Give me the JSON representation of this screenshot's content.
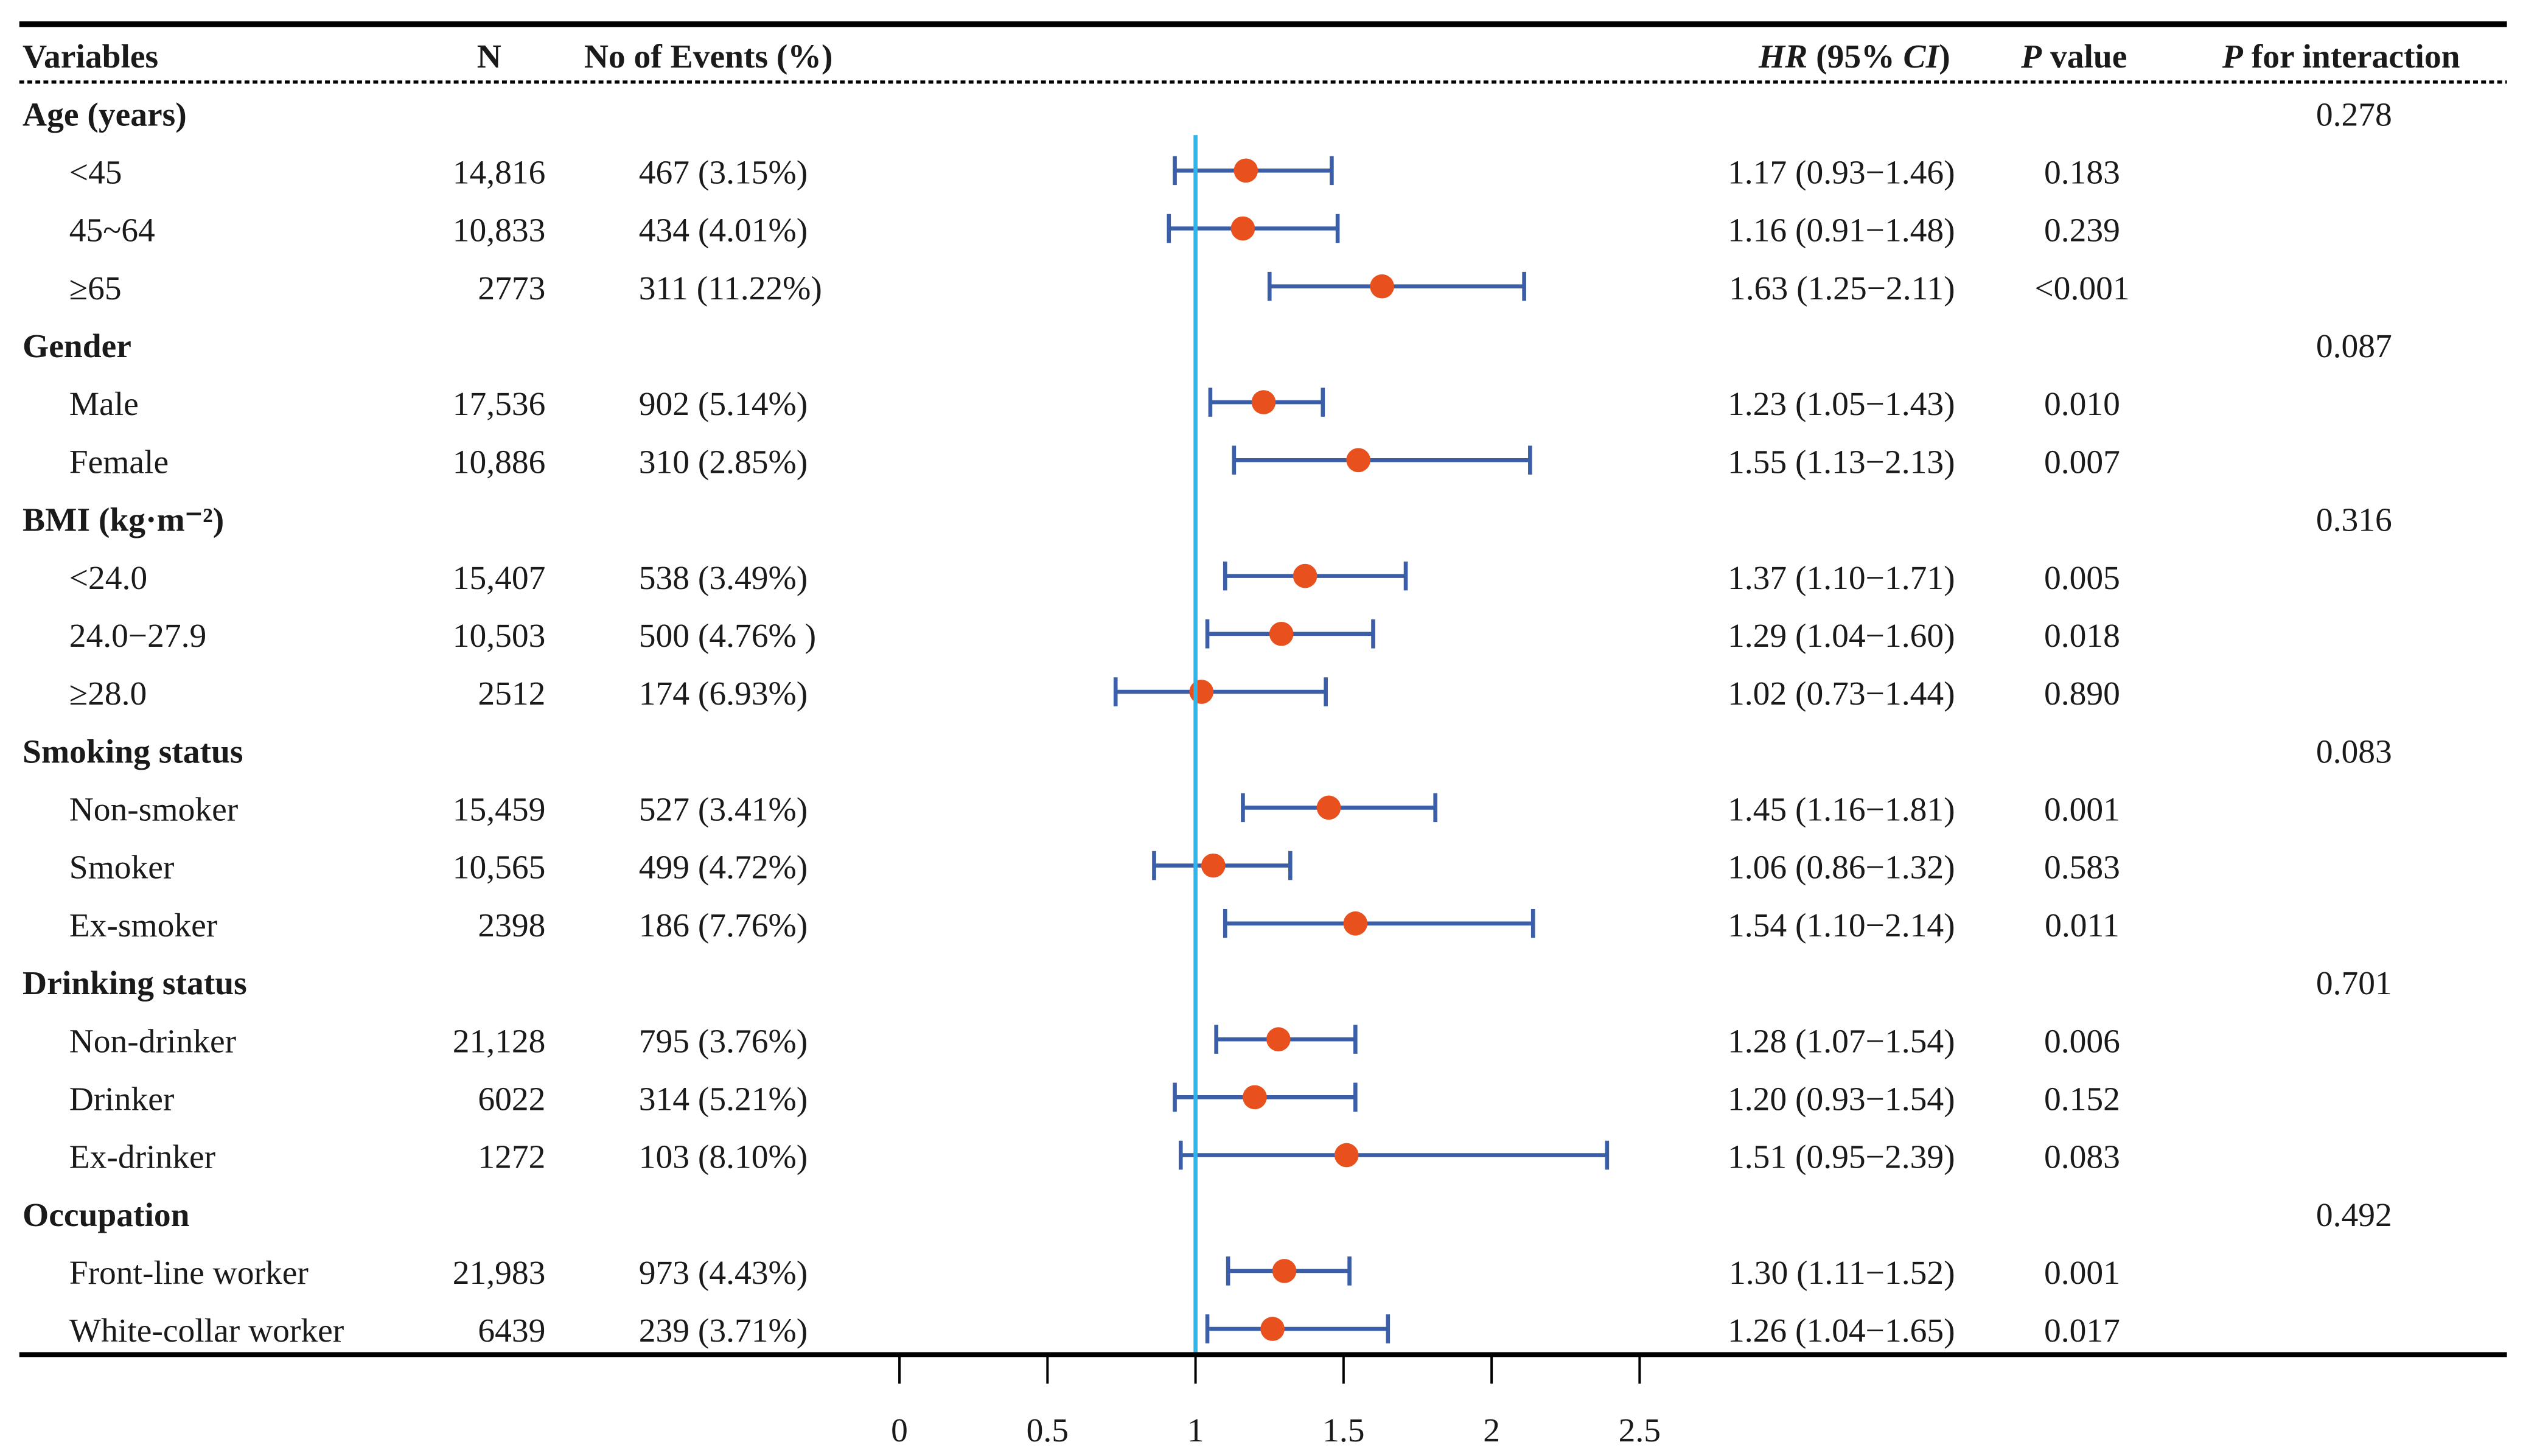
{
  "chart_data": {
    "type": "forest",
    "headers": {
      "variables": "Variables",
      "n": "N",
      "events": "No of Events (%)",
      "hr_i": "HR",
      "hr_mid": " (95% ",
      "hr_ci": "CI",
      "hr_end": ")",
      "p_i": "P",
      "p_rest": " value",
      "pint_i": "P",
      "pint_rest": " for interaction"
    },
    "xaxis": {
      "ticks": [
        "0",
        "0.5",
        "1",
        "1.5",
        "2",
        "2.5"
      ],
      "tick_values": [
        0,
        0.5,
        1,
        1.5,
        2,
        2.5
      ],
      "reference": 1,
      "xlim": [
        0,
        2.5
      ]
    },
    "colors": {
      "point": "#e8501e",
      "ci": "#3a5ea8",
      "reference": "#2bb6ec"
    },
    "groups": [
      {
        "label": "Age (years)",
        "p_interaction": "0.278",
        "rows": [
          {
            "label": "<45",
            "n": "14,816",
            "events": "467 (3.15%)",
            "hr": 1.17,
            "lo": 0.93,
            "hi": 1.46,
            "hr_text": "1.17 (0.93−1.46)",
            "p": "0.183"
          },
          {
            "label": "45~64",
            "n": "10,833",
            "events": "434 (4.01%)",
            "hr": 1.16,
            "lo": 0.91,
            "hi": 1.48,
            "hr_text": "1.16 (0.91−1.48)",
            "p": "0.239"
          },
          {
            "label": "≥65",
            "n": "2773",
            "events": "311 (11.22%)",
            "hr": 1.63,
            "lo": 1.25,
            "hi": 2.11,
            "hr_text": "1.63 (1.25−2.11)",
            "p": "<0.001"
          }
        ]
      },
      {
        "label": "Gender",
        "p_interaction": "0.087",
        "rows": [
          {
            "label": "Male",
            "n": "17,536",
            "events": "902 (5.14%)",
            "hr": 1.23,
            "lo": 1.05,
            "hi": 1.43,
            "hr_text": "1.23 (1.05−1.43)",
            "p": "0.010"
          },
          {
            "label": "Female",
            "n": "10,886",
            "events": "310 (2.85%)",
            "hr": 1.55,
            "lo": 1.13,
            "hi": 2.13,
            "hr_text": "1.55 (1.13−2.13)",
            "p": "0.007"
          }
        ]
      },
      {
        "label": "BMI (kg·m⁻²)",
        "p_interaction": "0.316",
        "rows": [
          {
            "label": "<24.0",
            "n": "15,407",
            "events": "538 (3.49%)",
            "hr": 1.37,
            "lo": 1.1,
            "hi": 1.71,
            "hr_text": "1.37 (1.10−1.71)",
            "p": "0.005"
          },
          {
            "label": "24.0−27.9",
            "n": "10,503",
            "events": "500 (4.76% )",
            "hr": 1.29,
            "lo": 1.04,
            "hi": 1.6,
            "hr_text": "1.29 (1.04−1.60)",
            "p": "0.018"
          },
          {
            "label": "≥28.0",
            "n": "2512",
            "events": "174 (6.93%)",
            "hr": 1.02,
            "lo": 0.73,
            "hi": 1.44,
            "hr_text": "1.02 (0.73−1.44)",
            "p": "0.890"
          }
        ]
      },
      {
        "label": "Smoking status",
        "p_interaction": "0.083",
        "rows": [
          {
            "label": "Non-smoker",
            "n": "15,459",
            "events": "527 (3.41%)",
            "hr": 1.45,
            "lo": 1.16,
            "hi": 1.81,
            "hr_text": "1.45 (1.16−1.81)",
            "p": "0.001"
          },
          {
            "label": "Smoker",
            "n": "10,565",
            "events": "499 (4.72%)",
            "hr": 1.06,
            "lo": 0.86,
            "hi": 1.32,
            "hr_text": "1.06 (0.86−1.32)",
            "p": "0.583"
          },
          {
            "label": "Ex-smoker",
            "n": "2398",
            "events": "186 (7.76%)",
            "hr": 1.54,
            "lo": 1.1,
            "hi": 2.14,
            "hr_text": "1.54 (1.10−2.14)",
            "p": "0.011"
          }
        ]
      },
      {
        "label": "Drinking status",
        "p_interaction": "0.701",
        "rows": [
          {
            "label": "Non-drinker",
            "n": "21,128",
            "events": "795 (3.76%)",
            "hr": 1.28,
            "lo": 1.07,
            "hi": 1.54,
            "hr_text": "1.28 (1.07−1.54)",
            "p": "0.006"
          },
          {
            "label": "Drinker",
            "n": "6022",
            "events": "314 (5.21%)",
            "hr": 1.2,
            "lo": 0.93,
            "hi": 1.54,
            "hr_text": "1.20 (0.93−1.54)",
            "p": "0.152"
          },
          {
            "label": "Ex-drinker",
            "n": "1272",
            "events": "103 (8.10%)",
            "hr": 1.51,
            "lo": 0.95,
            "hi": 2.39,
            "hr_text": "1.51 (0.95−2.39)",
            "p": "0.083"
          }
        ]
      },
      {
        "label": "Occupation",
        "p_interaction": "0.492",
        "rows": [
          {
            "label": "Front-line worker",
            "n": "21,983",
            "events": "973 (4.43%)",
            "hr": 1.3,
            "lo": 1.11,
            "hi": 1.52,
            "hr_text": "1.30 (1.11−1.52)",
            "p": "0.001"
          },
          {
            "label": "White-collar worker",
            "n": "6439",
            "events": "239 (3.71%)",
            "hr": 1.26,
            "lo": 1.04,
            "hi": 1.65,
            "hr_text": "1.26 (1.04−1.65)",
            "p": "0.017"
          }
        ]
      }
    ]
  }
}
